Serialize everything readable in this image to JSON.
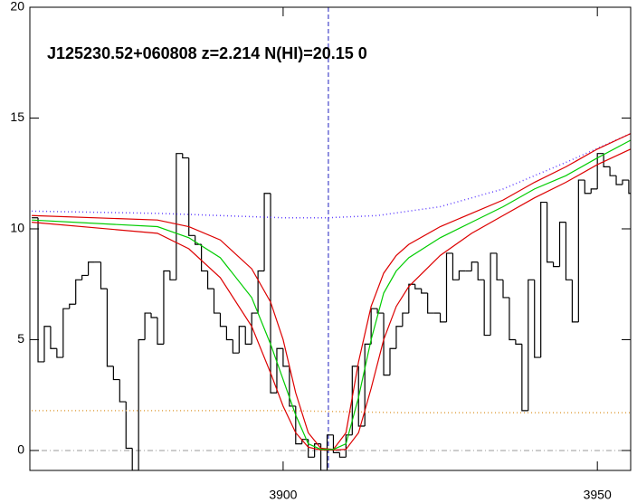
{
  "chart_data": {
    "type": "spectrum",
    "title": "J125230.52+060808 z=2.214 N(HI)=20.15 0",
    "xlim": [
      3859.7,
      3955.3
    ],
    "ylim": [
      -0.9,
      20
    ],
    "xticks": [
      3900,
      3950
    ],
    "yticks": [
      0,
      5,
      10,
      15,
      20
    ],
    "vline": 3907.2,
    "vline_color": "#2020c0",
    "hline": 0,
    "hline_color": "#999999",
    "series": [
      {
        "style": "step",
        "color": "#000000",
        "x": [
          3860,
          3861,
          3862,
          3863,
          3864,
          3865,
          3866,
          3867,
          3868,
          3869,
          3870,
          3871,
          3872,
          3873,
          3874,
          3875,
          3876,
          3877,
          3878,
          3879,
          3880,
          3881,
          3882,
          3883,
          3884,
          3885,
          3886,
          3887,
          3888,
          3889,
          3890,
          3891,
          3892,
          3893,
          3894,
          3895,
          3896,
          3897,
          3898,
          3899,
          3900,
          3901,
          3902,
          3903,
          3904,
          3905,
          3906,
          3907,
          3908,
          3909,
          3910,
          3911,
          3912,
          3913,
          3914,
          3915,
          3916,
          3917,
          3918,
          3919,
          3920,
          3921,
          3922,
          3923,
          3924,
          3925,
          3926,
          3927,
          3928,
          3929,
          3930,
          3931,
          3932,
          3933,
          3934,
          3935,
          3936,
          3937,
          3938,
          3939,
          3940,
          3941,
          3942,
          3943,
          3944,
          3945,
          3946,
          3947,
          3948,
          3949,
          3950,
          3951,
          3952,
          3953,
          3954,
          3955
        ],
        "values": [
          10.5,
          4.0,
          5.6,
          4.6,
          4.2,
          6.4,
          6.6,
          7.7,
          7.9,
          8.5,
          8.5,
          7.3,
          3.8,
          3.2,
          2.2,
          0.1,
          -0.9,
          5.0,
          6.2,
          6.0,
          4.8,
          8.1,
          7.7,
          13.4,
          13.2,
          9.7,
          9.3,
          8.1,
          7.3,
          6.2,
          5.6,
          5.0,
          4.4,
          5.6,
          4.8,
          6.2,
          8.1,
          11.6,
          2.6,
          4.6,
          3.8,
          2.0,
          0.3,
          0.5,
          -0.3,
          0.3,
          -0.9,
          0.7,
          -0.1,
          -0.3,
          0.7,
          3.8,
          1.1,
          4.8,
          6.4,
          6.2,
          3.4,
          4.6,
          5.6,
          6.2,
          7.5,
          7.3,
          7.1,
          6.2,
          6.2,
          5.8,
          8.9,
          7.7,
          8.1,
          8.1,
          8.5,
          7.7,
          5.2,
          8.9,
          7.7,
          6.9,
          5.0,
          4.8,
          1.8,
          7.7,
          4.2,
          11.2,
          8.5,
          8.3,
          10.3,
          7.7,
          5.8,
          12.2,
          11.6,
          11.8,
          13.4,
          12.8,
          12.4,
          12.0,
          12.2,
          11.6
        ]
      },
      {
        "style": "dotted",
        "color": "#6040ff",
        "x": [
          3860,
          3880,
          3900,
          3907,
          3915,
          3925,
          3935,
          3945,
          3955.3
        ],
        "values": [
          10.8,
          10.7,
          10.5,
          10.5,
          10.6,
          11.0,
          11.8,
          13.0,
          14.3
        ]
      },
      {
        "style": "dotted",
        "color": "#e0a040",
        "x": [
          3860,
          3870,
          3880,
          3900,
          3920,
          3940,
          3955.3
        ],
        "values": [
          1.8,
          1.8,
          1.8,
          1.8,
          1.7,
          1.7,
          1.7
        ]
      },
      {
        "style": "line",
        "color": "#dd0000",
        "x": [
          3860,
          3880,
          3885,
          3890,
          3895,
          3898,
          3900,
          3902,
          3904,
          3906,
          3908,
          3910,
          3912,
          3914,
          3916,
          3918,
          3920,
          3925,
          3930,
          3935,
          3940,
          3945,
          3950,
          3955.3
        ],
        "values": [
          10.6,
          10.4,
          10.1,
          9.5,
          8.2,
          6.7,
          5.0,
          2.6,
          0.8,
          0.1,
          0.05,
          0.8,
          4.0,
          6.5,
          8.0,
          8.8,
          9.3,
          10.1,
          10.7,
          11.3,
          12.1,
          12.8,
          13.6,
          14.3
        ]
      },
      {
        "style": "line",
        "color": "#dd0000",
        "x": [
          3860,
          3880,
          3885,
          3890,
          3895,
          3898,
          3900,
          3902,
          3904,
          3906,
          3908,
          3910,
          3912,
          3914,
          3916,
          3918,
          3920,
          3925,
          3930,
          3935,
          3940,
          3945,
          3950,
          3955.3
        ],
        "values": [
          10.3,
          9.8,
          9.1,
          7.8,
          5.6,
          3.5,
          2.0,
          0.8,
          0.15,
          0.02,
          0.02,
          0.05,
          0.8,
          2.8,
          5.0,
          6.5,
          7.4,
          8.8,
          9.8,
          10.6,
          11.4,
          12.1,
          12.9,
          13.6
        ]
      },
      {
        "style": "line",
        "color": "#00cc00",
        "x": [
          3860,
          3880,
          3885,
          3890,
          3895,
          3898,
          3900,
          3902,
          3904,
          3906,
          3908,
          3910,
          3912,
          3914,
          3916,
          3918,
          3920,
          3925,
          3930,
          3935,
          3940,
          3945,
          3950,
          3955.3
        ],
        "values": [
          10.4,
          10.1,
          9.6,
          8.7,
          6.9,
          4.8,
          3.2,
          1.6,
          0.3,
          0.05,
          0.05,
          0.3,
          2.4,
          5.0,
          7.1,
          8.1,
          8.7,
          9.6,
          10.3,
          11.0,
          11.8,
          12.4,
          13.2,
          14.0
        ]
      }
    ]
  }
}
